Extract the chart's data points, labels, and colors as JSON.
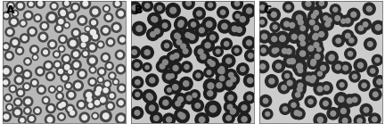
{
  "panels": [
    "A",
    "B",
    "C"
  ],
  "label_fontsize": 9,
  "label_color": "black",
  "label_fontweight": "bold",
  "fig_bg_color": "white",
  "fig_width": 4.32,
  "fig_height": 1.39,
  "dpi": 100,
  "panel_configs": [
    {
      "bg": "#b8b8b8",
      "cell_outer": "#484848",
      "cell_inner": "#e8e8e8",
      "n_cells": 160,
      "r_mean": 0.038,
      "r_std": 0.005,
      "inner_ratio": 0.5,
      "seed": 1001,
      "cluster_pairs": 8,
      "pair_distance_factor": 1.85
    },
    {
      "bg": "#c8c8c8",
      "cell_outer": "#1e1e1e",
      "cell_inner": "#888888",
      "n_cells": 90,
      "r_mean": 0.05,
      "r_std": 0.005,
      "inner_ratio": 0.42,
      "seed": 2002,
      "cluster_pairs": 18,
      "pair_distance_factor": 1.9
    },
    {
      "bg": "#cccccc",
      "cell_outer": "#282828",
      "cell_inner": "#909090",
      "n_cells": 75,
      "r_mean": 0.05,
      "r_std": 0.005,
      "inner_ratio": 0.42,
      "seed": 3003,
      "cluster_pairs": 14,
      "pair_distance_factor": 1.9
    }
  ],
  "wspace": 0.03
}
